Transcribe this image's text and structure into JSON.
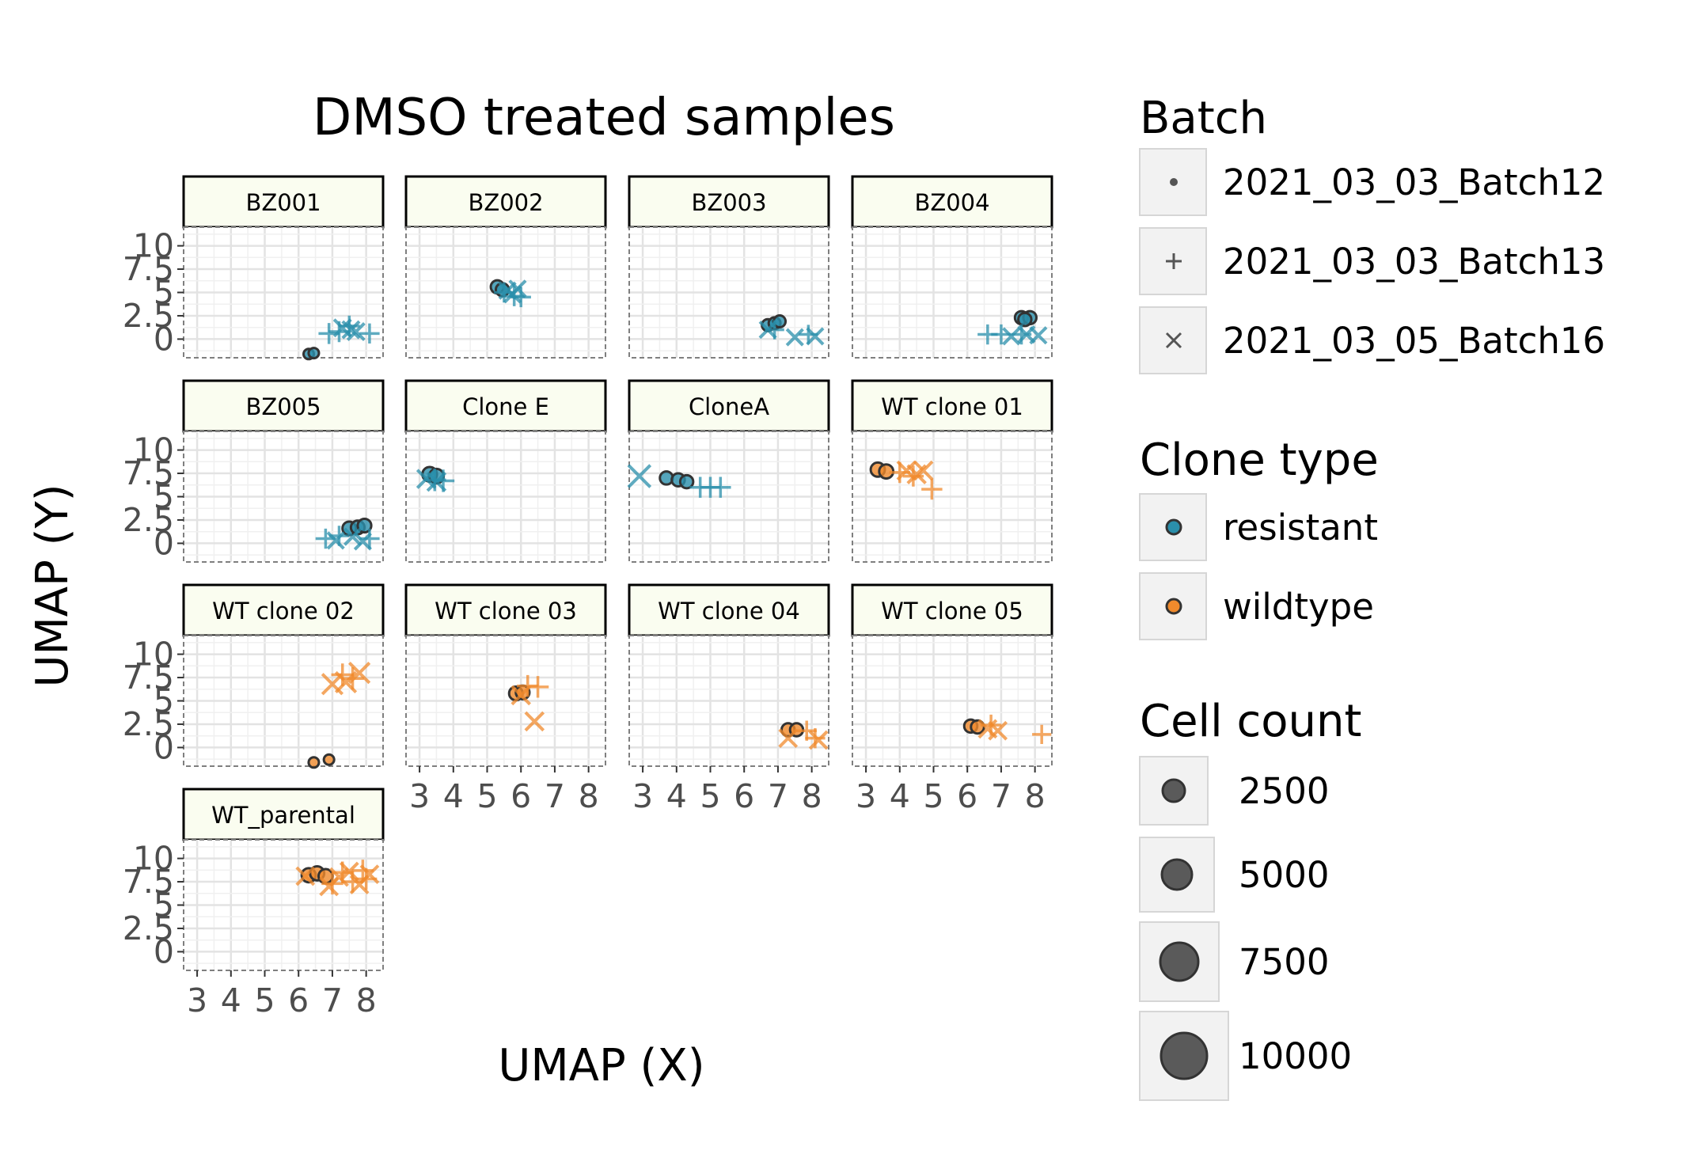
{
  "chart_data": {
    "type": "scatter",
    "title": "DMSO treated samples",
    "xlabel": "UMAP (X)",
    "ylabel": "UMAP (Y)",
    "xlim": [
      2.6,
      8.5
    ],
    "ylim": [
      -2,
      12
    ],
    "x_ticks": [
      "3",
      "4",
      "5",
      "6",
      "7",
      "8"
    ],
    "y_ticks": [
      "0",
      "2.5",
      "5",
      "7.5",
      "10"
    ],
    "grid": true,
    "legend_position": "right",
    "colors": {
      "resistant": "#2a8fab",
      "wildtype": "#f08a2c"
    },
    "panels": [
      {
        "label": "BZ001",
        "points": [
          {
            "x": 6.3,
            "y": -1.6,
            "batch": "2021_03_03_Batch12",
            "clone": "resistant",
            "count": 1500
          },
          {
            "x": 6.45,
            "y": -1.5,
            "batch": "2021_03_03_Batch12",
            "clone": "resistant",
            "count": 1500
          },
          {
            "x": 6.9,
            "y": 0.6,
            "batch": "2021_03_03_Batch13",
            "clone": "resistant",
            "count": 4000
          },
          {
            "x": 7.2,
            "y": 0.8,
            "batch": "2021_03_03_Batch13",
            "clone": "resistant",
            "count": 4000
          },
          {
            "x": 7.5,
            "y": 1.4,
            "batch": "2021_03_03_Batch13",
            "clone": "resistant",
            "count": 4000
          },
          {
            "x": 8.1,
            "y": 0.6,
            "batch": "2021_03_03_Batch13",
            "clone": "resistant",
            "count": 3500
          },
          {
            "x": 7.3,
            "y": 1.2,
            "batch": "2021_03_05_Batch16",
            "clone": "resistant",
            "count": 4000
          },
          {
            "x": 7.55,
            "y": 1.0,
            "batch": "2021_03_05_Batch16",
            "clone": "resistant",
            "count": 4000
          },
          {
            "x": 7.7,
            "y": 0.8,
            "batch": "2021_03_05_Batch16",
            "clone": "resistant",
            "count": 4000
          }
        ]
      },
      {
        "label": "BZ002",
        "points": [
          {
            "x": 5.3,
            "y": 5.6,
            "batch": "2021_03_03_Batch12",
            "clone": "resistant",
            "count": 3500
          },
          {
            "x": 5.45,
            "y": 5.3,
            "batch": "2021_03_03_Batch12",
            "clone": "resistant",
            "count": 3500
          },
          {
            "x": 5.5,
            "y": 5.0,
            "batch": "2021_03_03_Batch13",
            "clone": "resistant",
            "count": 3500
          },
          {
            "x": 5.8,
            "y": 4.6,
            "batch": "2021_03_03_Batch13",
            "clone": "resistant",
            "count": 3500
          },
          {
            "x": 6.0,
            "y": 4.5,
            "batch": "2021_03_03_Batch13",
            "clone": "resistant",
            "count": 3500
          },
          {
            "x": 5.6,
            "y": 5.2,
            "batch": "2021_03_05_Batch16",
            "clone": "resistant",
            "count": 3500
          },
          {
            "x": 5.75,
            "y": 4.8,
            "batch": "2021_03_05_Batch16",
            "clone": "resistant",
            "count": 3500
          },
          {
            "x": 5.9,
            "y": 5.4,
            "batch": "2021_03_05_Batch16",
            "clone": "resistant",
            "count": 3500
          }
        ]
      },
      {
        "label": "BZ003",
        "points": [
          {
            "x": 6.7,
            "y": 1.5,
            "batch": "2021_03_03_Batch12",
            "clone": "resistant",
            "count": 2500
          },
          {
            "x": 6.9,
            "y": 1.7,
            "batch": "2021_03_03_Batch12",
            "clone": "resistant",
            "count": 2500
          },
          {
            "x": 7.05,
            "y": 1.9,
            "batch": "2021_03_03_Batch12",
            "clone": "resistant",
            "count": 2500
          },
          {
            "x": 6.9,
            "y": 1.0,
            "batch": "2021_03_03_Batch13",
            "clone": "resistant",
            "count": 3000
          },
          {
            "x": 7.9,
            "y": 0.5,
            "batch": "2021_03_03_Batch13",
            "clone": "resistant",
            "count": 3000
          },
          {
            "x": 6.7,
            "y": 1.0,
            "batch": "2021_03_05_Batch16",
            "clone": "resistant",
            "count": 3500
          },
          {
            "x": 7.5,
            "y": 0.2,
            "batch": "2021_03_05_Batch16",
            "clone": "resistant",
            "count": 3500
          },
          {
            "x": 8.1,
            "y": 0.3,
            "batch": "2021_03_05_Batch16",
            "clone": "resistant",
            "count": 3500
          }
        ]
      },
      {
        "label": "BZ004",
        "points": [
          {
            "x": 7.6,
            "y": 2.3,
            "batch": "2021_03_03_Batch12",
            "clone": "resistant",
            "count": 3500
          },
          {
            "x": 7.85,
            "y": 2.3,
            "batch": "2021_03_03_Batch12",
            "clone": "resistant",
            "count": 3500
          },
          {
            "x": 7.7,
            "y": 2.1,
            "batch": "2021_03_03_Batch12",
            "clone": "resistant",
            "count": 3500
          },
          {
            "x": 6.6,
            "y": 0.5,
            "batch": "2021_03_03_Batch13",
            "clone": "resistant",
            "count": 3500
          },
          {
            "x": 7.0,
            "y": 0.5,
            "batch": "2021_03_03_Batch13",
            "clone": "resistant",
            "count": 3500
          },
          {
            "x": 7.6,
            "y": 0.5,
            "batch": "2021_03_03_Batch13",
            "clone": "resistant",
            "count": 3500
          },
          {
            "x": 7.3,
            "y": 0.3,
            "batch": "2021_03_05_Batch16",
            "clone": "resistant",
            "count": 3500
          },
          {
            "x": 7.75,
            "y": 0.5,
            "batch": "2021_03_05_Batch16",
            "clone": "resistant",
            "count": 3500
          },
          {
            "x": 8.1,
            "y": 0.4,
            "batch": "2021_03_05_Batch16",
            "clone": "resistant",
            "count": 3500
          }
        ]
      },
      {
        "label": "BZ005",
        "points": [
          {
            "x": 7.5,
            "y": 1.6,
            "batch": "2021_03_03_Batch12",
            "clone": "resistant",
            "count": 4000
          },
          {
            "x": 7.75,
            "y": 1.7,
            "batch": "2021_03_03_Batch12",
            "clone": "resistant",
            "count": 4000
          },
          {
            "x": 7.95,
            "y": 1.9,
            "batch": "2021_03_03_Batch12",
            "clone": "resistant",
            "count": 4000
          },
          {
            "x": 6.8,
            "y": 0.5,
            "batch": "2021_03_03_Batch13",
            "clone": "resistant",
            "count": 3500
          },
          {
            "x": 7.2,
            "y": 0.8,
            "batch": "2021_03_03_Batch13",
            "clone": "resistant",
            "count": 3500
          },
          {
            "x": 8.1,
            "y": 0.5,
            "batch": "2021_03_03_Batch13",
            "clone": "resistant",
            "count": 3500
          },
          {
            "x": 7.1,
            "y": 0.3,
            "batch": "2021_03_05_Batch16",
            "clone": "resistant",
            "count": 3500
          },
          {
            "x": 7.6,
            "y": 0.7,
            "batch": "2021_03_05_Batch16",
            "clone": "resistant",
            "count": 3500
          },
          {
            "x": 7.9,
            "y": 0.2,
            "batch": "2021_03_05_Batch16",
            "clone": "resistant",
            "count": 3500
          }
        ]
      },
      {
        "label": "Clone E",
        "points": [
          {
            "x": 3.3,
            "y": 7.4,
            "batch": "2021_03_03_Batch12",
            "clone": "resistant",
            "count": 5000
          },
          {
            "x": 3.5,
            "y": 7.2,
            "batch": "2021_03_03_Batch12",
            "clone": "resistant",
            "count": 5000
          },
          {
            "x": 3.45,
            "y": 6.8,
            "batch": "2021_03_03_Batch13",
            "clone": "resistant",
            "count": 5000
          },
          {
            "x": 3.7,
            "y": 6.7,
            "batch": "2021_03_03_Batch13",
            "clone": "resistant",
            "count": 5000
          },
          {
            "x": 3.2,
            "y": 6.9,
            "batch": "2021_03_05_Batch16",
            "clone": "resistant",
            "count": 5000
          },
          {
            "x": 3.5,
            "y": 6.6,
            "batch": "2021_03_05_Batch16",
            "clone": "resistant",
            "count": 5000
          }
        ]
      },
      {
        "label": "CloneA",
        "points": [
          {
            "x": 3.7,
            "y": 7.0,
            "batch": "2021_03_03_Batch12",
            "clone": "resistant",
            "count": 3500
          },
          {
            "x": 4.05,
            "y": 6.8,
            "batch": "2021_03_03_Batch12",
            "clone": "resistant",
            "count": 3500
          },
          {
            "x": 4.3,
            "y": 6.6,
            "batch": "2021_03_03_Batch12",
            "clone": "resistant",
            "count": 3500
          },
          {
            "x": 4.7,
            "y": 6.0,
            "batch": "2021_03_03_Batch13",
            "clone": "resistant",
            "count": 4000
          },
          {
            "x": 5.0,
            "y": 6.0,
            "batch": "2021_03_03_Batch13",
            "clone": "resistant",
            "count": 4000
          },
          {
            "x": 5.3,
            "y": 6.0,
            "batch": "2021_03_03_Batch13",
            "clone": "resistant",
            "count": 4000
          },
          {
            "x": 2.9,
            "y": 7.2,
            "batch": "2021_03_05_Batch16",
            "clone": "resistant",
            "count": 9000
          }
        ]
      },
      {
        "label": "WT clone 01",
        "points": [
          {
            "x": 3.35,
            "y": 7.9,
            "batch": "2021_03_03_Batch12",
            "clone": "wildtype",
            "count": 4500
          },
          {
            "x": 3.6,
            "y": 7.7,
            "batch": "2021_03_03_Batch12",
            "clone": "wildtype",
            "count": 4500
          },
          {
            "x": 4.0,
            "y": 7.6,
            "batch": "2021_03_03_Batch13",
            "clone": "wildtype",
            "count": 4000
          },
          {
            "x": 4.4,
            "y": 7.2,
            "batch": "2021_03_03_Batch13",
            "clone": "wildtype",
            "count": 4000
          },
          {
            "x": 4.95,
            "y": 5.8,
            "batch": "2021_03_03_Batch13",
            "clone": "wildtype",
            "count": 4000
          },
          {
            "x": 4.2,
            "y": 7.8,
            "batch": "2021_03_05_Batch16",
            "clone": "wildtype",
            "count": 5000
          },
          {
            "x": 4.5,
            "y": 7.4,
            "batch": "2021_03_05_Batch16",
            "clone": "wildtype",
            "count": 5000
          },
          {
            "x": 4.7,
            "y": 7.8,
            "batch": "2021_03_05_Batch16",
            "clone": "wildtype",
            "count": 5000
          }
        ]
      },
      {
        "label": "WT clone 02",
        "points": [
          {
            "x": 6.45,
            "y": -1.6,
            "batch": "2021_03_03_Batch12",
            "clone": "wildtype",
            "count": 1500
          },
          {
            "x": 6.9,
            "y": -1.3,
            "batch": "2021_03_03_Batch12",
            "clone": "wildtype",
            "count": 1500
          },
          {
            "x": 7.3,
            "y": 7.8,
            "batch": "2021_03_03_Batch13",
            "clone": "wildtype",
            "count": 5000
          },
          {
            "x": 7.6,
            "y": 7.4,
            "batch": "2021_03_03_Batch13",
            "clone": "wildtype",
            "count": 5000
          },
          {
            "x": 7.0,
            "y": 6.8,
            "batch": "2021_03_05_Batch16",
            "clone": "wildtype",
            "count": 7000
          },
          {
            "x": 7.4,
            "y": 7.0,
            "batch": "2021_03_05_Batch16",
            "clone": "wildtype",
            "count": 7000
          },
          {
            "x": 7.8,
            "y": 8.0,
            "batch": "2021_03_05_Batch16",
            "clone": "wildtype",
            "count": 7000
          }
        ]
      },
      {
        "label": "WT clone 03",
        "points": [
          {
            "x": 5.85,
            "y": 5.8,
            "batch": "2021_03_03_Batch12",
            "clone": "wildtype",
            "count": 4000
          },
          {
            "x": 6.05,
            "y": 5.9,
            "batch": "2021_03_03_Batch12",
            "clone": "wildtype",
            "count": 4000
          },
          {
            "x": 6.2,
            "y": 6.6,
            "batch": "2021_03_03_Batch13",
            "clone": "wildtype",
            "count": 4500
          },
          {
            "x": 6.5,
            "y": 6.5,
            "batch": "2021_03_03_Batch13",
            "clone": "wildtype",
            "count": 4500
          },
          {
            "x": 6.0,
            "y": 5.6,
            "batch": "2021_03_05_Batch16",
            "clone": "wildtype",
            "count": 5000
          },
          {
            "x": 6.4,
            "y": 2.8,
            "batch": "2021_03_05_Batch16",
            "clone": "wildtype",
            "count": 5000
          }
        ]
      },
      {
        "label": "WT clone 04",
        "points": [
          {
            "x": 7.3,
            "y": 1.9,
            "batch": "2021_03_03_Batch12",
            "clone": "wildtype",
            "count": 3500
          },
          {
            "x": 7.55,
            "y": 1.9,
            "batch": "2021_03_03_Batch12",
            "clone": "wildtype",
            "count": 3500
          },
          {
            "x": 7.85,
            "y": 1.8,
            "batch": "2021_03_03_Batch13",
            "clone": "wildtype",
            "count": 3500
          },
          {
            "x": 8.1,
            "y": 1.0,
            "batch": "2021_03_03_Batch13",
            "clone": "wildtype",
            "count": 3500
          },
          {
            "x": 7.3,
            "y": 1.0,
            "batch": "2021_03_05_Batch16",
            "clone": "wildtype",
            "count": 4500
          },
          {
            "x": 8.2,
            "y": 0.8,
            "batch": "2021_03_05_Batch16",
            "clone": "wildtype",
            "count": 4500
          }
        ]
      },
      {
        "label": "WT clone 05",
        "points": [
          {
            "x": 6.1,
            "y": 2.3,
            "batch": "2021_03_03_Batch12",
            "clone": "wildtype",
            "count": 3500
          },
          {
            "x": 6.3,
            "y": 2.2,
            "batch": "2021_03_03_Batch12",
            "clone": "wildtype",
            "count": 3500
          },
          {
            "x": 6.7,
            "y": 2.4,
            "batch": "2021_03_03_Batch13",
            "clone": "wildtype",
            "count": 4000
          },
          {
            "x": 8.2,
            "y": 1.4,
            "batch": "2021_03_03_Batch13",
            "clone": "wildtype",
            "count": 3000
          },
          {
            "x": 6.6,
            "y": 2.0,
            "batch": "2021_03_05_Batch16",
            "clone": "wildtype",
            "count": 4500
          },
          {
            "x": 6.9,
            "y": 1.8,
            "batch": "2021_03_05_Batch16",
            "clone": "wildtype",
            "count": 4500
          }
        ]
      },
      {
        "label": "WT_parental",
        "points": [
          {
            "x": 6.3,
            "y": 8.2,
            "batch": "2021_03_03_Batch12",
            "clone": "wildtype",
            "count": 4500
          },
          {
            "x": 6.55,
            "y": 8.4,
            "batch": "2021_03_03_Batch12",
            "clone": "wildtype",
            "count": 4500
          },
          {
            "x": 6.8,
            "y": 8.1,
            "batch": "2021_03_03_Batch12",
            "clone": "wildtype",
            "count": 4500
          },
          {
            "x": 7.0,
            "y": 7.3,
            "batch": "2021_03_03_Batch13",
            "clone": "wildtype",
            "count": 4500
          },
          {
            "x": 7.3,
            "y": 8.5,
            "batch": "2021_03_03_Batch13",
            "clone": "wildtype",
            "count": 4500
          },
          {
            "x": 7.6,
            "y": 7.5,
            "batch": "2021_03_03_Batch13",
            "clone": "wildtype",
            "count": 4500
          },
          {
            "x": 7.9,
            "y": 8.7,
            "batch": "2021_03_03_Batch13",
            "clone": "wildtype",
            "count": 4500
          },
          {
            "x": 8.0,
            "y": 7.8,
            "batch": "2021_03_03_Batch13",
            "clone": "wildtype",
            "count": 4500
          },
          {
            "x": 6.2,
            "y": 8.1,
            "batch": "2021_03_05_Batch16",
            "clone": "wildtype",
            "count": 4500
          },
          {
            "x": 6.9,
            "y": 7.0,
            "batch": "2021_03_05_Batch16",
            "clone": "wildtype",
            "count": 4500
          },
          {
            "x": 7.2,
            "y": 8.0,
            "batch": "2021_03_05_Batch16",
            "clone": "wildtype",
            "count": 4500
          },
          {
            "x": 7.5,
            "y": 8.6,
            "batch": "2021_03_05_Batch16",
            "clone": "wildtype",
            "count": 4500
          },
          {
            "x": 7.8,
            "y": 7.2,
            "batch": "2021_03_05_Batch16",
            "clone": "wildtype",
            "count": 4500
          },
          {
            "x": 8.1,
            "y": 8.3,
            "batch": "2021_03_05_Batch16",
            "clone": "wildtype",
            "count": 4500
          }
        ]
      }
    ]
  },
  "legend": {
    "batch": {
      "title": "Batch",
      "items": [
        "2021_03_03_Batch12",
        "2021_03_03_Batch13",
        "2021_03_05_Batch16"
      ]
    },
    "clone_type": {
      "title": "Clone type",
      "items": [
        "resistant",
        "wildtype"
      ]
    },
    "cell_count": {
      "title": "Cell count",
      "items": [
        "2500",
        "5000",
        "7500",
        "10000"
      ],
      "values": [
        2500,
        5000,
        7500,
        10000
      ]
    }
  }
}
